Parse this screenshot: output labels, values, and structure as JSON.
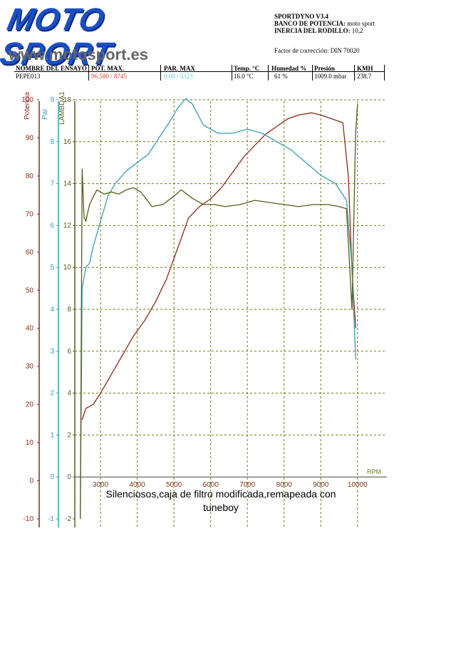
{
  "logo": {
    "title": "MOTO SPORT",
    "url": "www.motosport.es"
  },
  "info": {
    "line1": "SPORTDYNO V3.4",
    "line2_label": "BANCO DE POTENCIA:",
    "line2_value": "moto sport",
    "line3_label": "INERCIA DEL RODILLO:",
    "line3_value": "10,2",
    "factor": "Factor de corrección: DIN 70020"
  },
  "table": {
    "headers": [
      "NOMBRE DEL ENSAYO",
      "POT. MAX.",
      "PAR. MAX",
      "Temp. °C",
      "Humedad %",
      "Presión",
      "KMH"
    ],
    "values": [
      "PEPE013",
      "96.580 / 8745",
      "9.03 / 5323",
      "16.0 °C",
      "61 %",
      "1009.0 mbar",
      "238.7"
    ]
  },
  "colors": {
    "potencia": "#8b2a1a",
    "par": "#3a9fb0",
    "lambda": "#5a5a1a",
    "grid": "#6e7a14",
    "pot_value": "#d9402a",
    "par_value": "#56c9dd"
  },
  "chart_data": {
    "type": "line",
    "x_label": "RPM",
    "x_ticks": [
      3000,
      4000,
      5000,
      6000,
      7000,
      8000,
      9000,
      10000
    ],
    "x_range": [
      2300,
      10800
    ],
    "axes": [
      {
        "name": "Potencia",
        "ticks": [
          -10,
          0,
          10,
          20,
          30,
          40,
          50,
          60,
          70,
          80,
          90,
          100
        ],
        "range": [
          -10,
          100
        ]
      },
      {
        "name": "Par",
        "ticks": [
          -1,
          0,
          1,
          2,
          3,
          4,
          5,
          6,
          7,
          8,
          9
        ],
        "range": [
          -1,
          9
        ]
      },
      {
        "name": "LAMBDA1",
        "ticks": [
          -2,
          0,
          2,
          4,
          6,
          8,
          10,
          12,
          14,
          16,
          18
        ],
        "range": [
          -2,
          18
        ]
      }
    ],
    "series": [
      {
        "name": "Potencia",
        "axis": 0,
        "x": [
          2500,
          2600,
          2800,
          3000,
          3300,
          3600,
          3900,
          4200,
          4500,
          4800,
          5100,
          5400,
          5700,
          6000,
          6300,
          6600,
          6900,
          7200,
          7500,
          7800,
          8100,
          8400,
          8745,
          9000,
          9300,
          9600,
          9750,
          9850,
          9950
        ],
        "y": [
          16,
          19,
          20,
          23,
          28,
          33,
          38,
          42,
          47,
          53,
          61,
          69,
          72,
          74,
          77,
          81,
          85,
          88,
          91,
          93,
          95,
          96,
          96.58,
          96,
          95,
          94,
          80,
          55,
          40
        ]
      },
      {
        "name": "Par",
        "axis": 1,
        "x": [
          2450,
          2500,
          2600,
          2700,
          2800,
          3000,
          3200,
          3400,
          3700,
          4000,
          4300,
          4600,
          4900,
          5100,
          5323,
          5500,
          5800,
          6200,
          6600,
          7000,
          7400,
          7800,
          8200,
          8600,
          9000,
          9400,
          9700,
          9850,
          9950
        ],
        "y": [
          -1,
          4.5,
          5,
          5.1,
          5.5,
          6.1,
          6.7,
          7.0,
          7.3,
          7.5,
          7.7,
          8.1,
          8.5,
          8.8,
          9.03,
          8.9,
          8.4,
          8.2,
          8.2,
          8.3,
          8.2,
          8.0,
          7.8,
          7.5,
          7.2,
          7.0,
          6.6,
          5.0,
          2.8
        ]
      },
      {
        "name": "LAMBDA1",
        "axis": 2,
        "x": [
          2450,
          2500,
          2550,
          2600,
          2700,
          2900,
          3100,
          3300,
          3500,
          3700,
          3900,
          4100,
          4400,
          4700,
          5000,
          5200,
          5500,
          5800,
          6100,
          6400,
          6800,
          7200,
          7600,
          8000,
          8400,
          8800,
          9200,
          9500,
          9700,
          9850,
          9950,
          10000
        ],
        "y": [
          -2,
          14.7,
          12.4,
          12.2,
          13.0,
          13.7,
          13.5,
          13.6,
          13.5,
          13.7,
          13.8,
          13.6,
          12.9,
          13.0,
          13.4,
          13.7,
          13.3,
          13.0,
          13.0,
          12.9,
          13.0,
          13.2,
          13.1,
          13.0,
          12.9,
          13.0,
          13.0,
          12.9,
          12.8,
          8.0,
          16.5,
          17.8
        ]
      }
    ]
  },
  "caption": "Silenciosos,caja de filtro modificada,remapeada con tuneboy"
}
